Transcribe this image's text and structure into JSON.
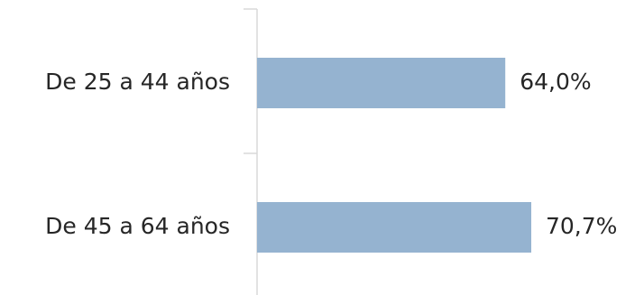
{
  "chart_data": {
    "type": "bar",
    "orientation": "horizontal",
    "categories": [
      "De 25 a 44 años",
      "De 45 a 64 años"
    ],
    "values": [
      64.0,
      70.7
    ],
    "value_labels": [
      "64,0%",
      "70,7%"
    ],
    "title": "",
    "xlabel": "",
    "ylabel": "",
    "xlim": [
      0,
      100
    ],
    "grid": false,
    "legend": "none",
    "bar_color": "#95b3d0"
  }
}
